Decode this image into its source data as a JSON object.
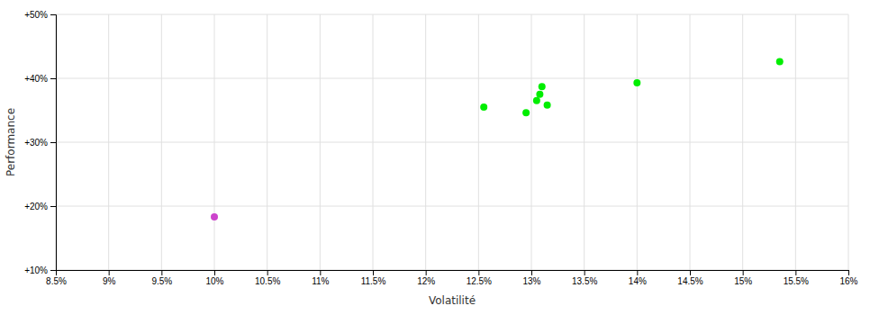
{
  "chart_data": {
    "type": "scatter",
    "xlabel": "Volatilité",
    "ylabel": "Performance",
    "xlim": [
      0.085,
      0.16
    ],
    "ylim": [
      0.1,
      0.5
    ],
    "xticks": [
      {
        "value": 0.085,
        "label": "8.5%"
      },
      {
        "value": 0.09,
        "label": "9%"
      },
      {
        "value": 0.095,
        "label": "9.5%"
      },
      {
        "value": 0.1,
        "label": "10%"
      },
      {
        "value": 0.105,
        "label": "10.5%"
      },
      {
        "value": 0.11,
        "label": "11%"
      },
      {
        "value": 0.115,
        "label": "11.5%"
      },
      {
        "value": 0.12,
        "label": "12%"
      },
      {
        "value": 0.125,
        "label": "12.5%"
      },
      {
        "value": 0.13,
        "label": "13%"
      },
      {
        "value": 0.135,
        "label": "13.5%"
      },
      {
        "value": 0.14,
        "label": "14%"
      },
      {
        "value": 0.145,
        "label": "14.5%"
      },
      {
        "value": 0.15,
        "label": "15%"
      },
      {
        "value": 0.155,
        "label": "15.5%"
      },
      {
        "value": 0.16,
        "label": "16%"
      }
    ],
    "yticks": [
      {
        "value": 0.1,
        "label": "+10%"
      },
      {
        "value": 0.2,
        "label": "+20%"
      },
      {
        "value": 0.3,
        "label": "+30%"
      },
      {
        "value": 0.4,
        "label": "+40%"
      },
      {
        "value": 0.5,
        "label": "+50%"
      }
    ],
    "grid": true,
    "series": [
      {
        "color": "#00ee00",
        "x": [
          0.1255,
          0.1295,
          0.1305,
          0.1308,
          0.1315,
          0.131,
          0.14,
          0.1535
        ],
        "values": [
          0.355,
          0.346,
          0.365,
          0.375,
          0.358,
          0.387,
          0.393,
          0.426
        ]
      },
      {
        "color": "#cc44cc",
        "x": [
          0.1
        ],
        "values": [
          0.183
        ]
      }
    ]
  }
}
